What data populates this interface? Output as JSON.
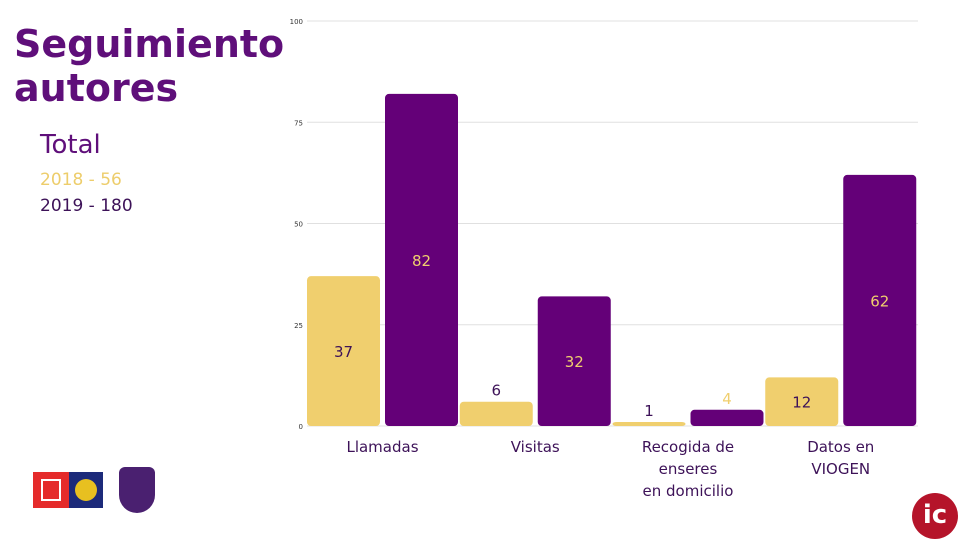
{
  "title_line1": "Seguimiento",
  "title_line2": "autores",
  "total_label": "Total",
  "legend_2018": "2018 - 56",
  "legend_2019": "2019 - 180",
  "colors": {
    "2018": "#f0cf6e",
    "2019": "#640078",
    "title": "#5f0f7a",
    "logo_red": "#b5142a"
  },
  "logo_text": "ic",
  "chart_data": {
    "type": "bar",
    "categories": [
      [
        "Llamadas"
      ],
      [
        "Visitas"
      ],
      [
        "Recogida de",
        "enseres",
        "en domicilio"
      ],
      [
        "Datos en",
        "VIOGEN"
      ]
    ],
    "series": [
      {
        "name": "2018",
        "values": [
          37,
          6,
          1,
          12
        ]
      },
      {
        "name": "2019",
        "values": [
          82,
          32,
          4,
          62
        ]
      }
    ],
    "ylim": [
      0,
      100
    ],
    "yticks": [
      0,
      25,
      50,
      75,
      100
    ],
    "grid": true
  }
}
